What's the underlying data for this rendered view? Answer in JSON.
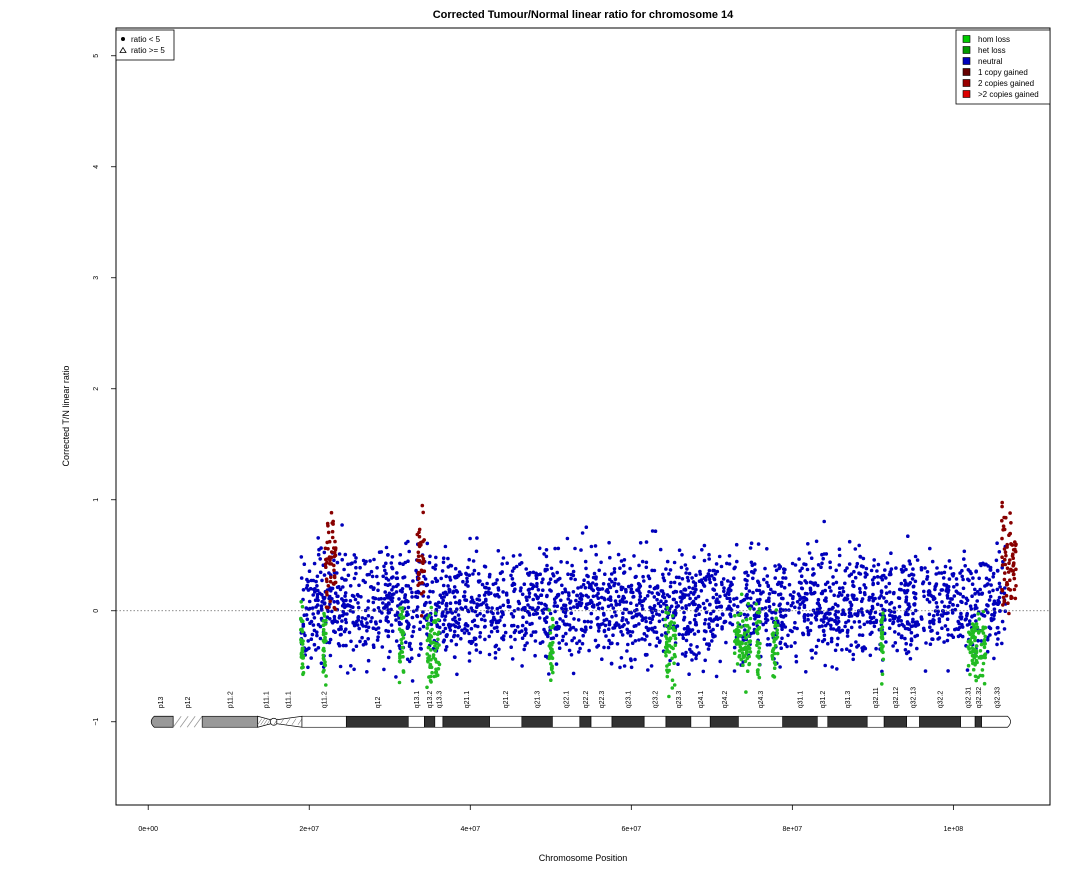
{
  "chart_data": {
    "type": "scatter",
    "title": "Corrected Tumour/Normal linear ratio for chromosome  14",
    "xlabel": "Chromosome Position",
    "ylabel": "Corrected T/N linear ratio",
    "xlim": [
      -4000000,
      112000000
    ],
    "ylim": [
      -1.75,
      5.25
    ],
    "x_ticks": [
      {
        "value": 0,
        "label": "0e+00"
      },
      {
        "value": 20000000,
        "label": "2e+07"
      },
      {
        "value": 40000000,
        "label": "4e+07"
      },
      {
        "value": 60000000,
        "label": "6e+07"
      },
      {
        "value": 80000000,
        "label": "8e+07"
      },
      {
        "value": 100000000,
        "label": "1e+08"
      }
    ],
    "y_ticks": [
      {
        "value": -1,
        "label": "−1"
      },
      {
        "value": 0,
        "label": "0"
      },
      {
        "value": 1,
        "label": "1"
      },
      {
        "value": 2,
        "label": "2"
      },
      {
        "value": 3,
        "label": "3"
      },
      {
        "value": 4,
        "label": "4"
      },
      {
        "value": 5,
        "label": "5"
      }
    ],
    "reference_line": 0,
    "shape_legend": {
      "placement": "top-left",
      "items": [
        {
          "label": "ratio < 5",
          "shape": "filled-circle"
        },
        {
          "label": "ratio >= 5",
          "shape": "open-triangle"
        }
      ]
    },
    "color_legend": {
      "placement": "top-right",
      "items": [
        {
          "label": "hom loss",
          "color": "#00cc00"
        },
        {
          "label": "het loss",
          "color": "#009900"
        },
        {
          "label": "neutral",
          "color": "#0000bb"
        },
        {
          "label": "1 copy gained",
          "color": "#660000"
        },
        {
          "label": "2 copies gained",
          "color": "#990000"
        },
        {
          "label": ">2 copies gained",
          "color": "#dd0000"
        }
      ]
    },
    "series": [
      {
        "name": "neutral",
        "color": "#0000bb",
        "x_range": [
          19000000,
          106500000
        ],
        "baseline": 0.05,
        "spread": 0.45
      },
      {
        "name": "het loss",
        "color": "#22bb22",
        "x_ranges": [
          [
            18900000,
            19300000
          ],
          [
            21700000,
            22100000
          ],
          [
            31200000,
            31800000
          ],
          [
            34600000,
            36200000
          ],
          [
            49800000,
            50300000
          ],
          [
            64200000,
            65500000
          ],
          [
            72800000,
            74800000
          ],
          [
            75500000,
            76000000
          ],
          [
            77500000,
            78200000
          ],
          [
            91000000,
            91300000
          ],
          [
            101800000,
            104000000
          ]
        ],
        "baseline": -0.3,
        "spread": 0.3
      },
      {
        "name": "1 copy gained",
        "color": "#880000",
        "x_ranges": [
          [
            22000000,
            23300000
          ],
          [
            33400000,
            34300000
          ],
          [
            106000000,
            107800000
          ]
        ],
        "baseline": 0.45,
        "spread": 0.45
      }
    ],
    "chromosome_ideogram": {
      "y": -1,
      "bands": [
        {
          "name": "p13",
          "start": 0,
          "end": 3100000,
          "stain": "gvar"
        },
        {
          "name": "p12",
          "start": 3100000,
          "end": 6700000,
          "stain": "stalk"
        },
        {
          "name": "p11.2",
          "start": 6700000,
          "end": 13600000,
          "stain": "gpos50"
        },
        {
          "name": "p11.1",
          "start": 13600000,
          "end": 15600000,
          "stain": "acen"
        },
        {
          "name": "q11.1",
          "start": 15600000,
          "end": 19100000,
          "stain": "acen"
        },
        {
          "name": "q11.2",
          "start": 19100000,
          "end": 24600000,
          "stain": "gneg"
        },
        {
          "name": "q12",
          "start": 24600000,
          "end": 32300000,
          "stain": "gpos100"
        },
        {
          "name": "q13.1",
          "start": 32300000,
          "end": 34300000,
          "stain": "gneg"
        },
        {
          "name": "q13.2",
          "start": 34300000,
          "end": 35600000,
          "stain": "gpos100"
        },
        {
          "name": "q13.3",
          "start": 35600000,
          "end": 36600000,
          "stain": "gneg"
        },
        {
          "name": "q21.1",
          "start": 36600000,
          "end": 42400000,
          "stain": "gpos100"
        },
        {
          "name": "q21.2",
          "start": 42400000,
          "end": 46400000,
          "stain": "gneg"
        },
        {
          "name": "q21.3",
          "start": 46400000,
          "end": 50200000,
          "stain": "gpos100"
        },
        {
          "name": "q22.1",
          "start": 50200000,
          "end": 53600000,
          "stain": "gneg"
        },
        {
          "name": "q22.2",
          "start": 53600000,
          "end": 55000000,
          "stain": "gpos100"
        },
        {
          "name": "q22.3",
          "start": 55000000,
          "end": 57600000,
          "stain": "gneg"
        },
        {
          "name": "q23.1",
          "start": 57600000,
          "end": 61600000,
          "stain": "gpos100"
        },
        {
          "name": "q23.2",
          "start": 61600000,
          "end": 64300000,
          "stain": "gneg"
        },
        {
          "name": "q23.3",
          "start": 64300000,
          "end": 67400000,
          "stain": "gpos100"
        },
        {
          "name": "q24.1",
          "start": 67400000,
          "end": 69800000,
          "stain": "gneg"
        },
        {
          "name": "q24.2",
          "start": 69800000,
          "end": 73300000,
          "stain": "gpos100"
        },
        {
          "name": "q24.3",
          "start": 73300000,
          "end": 78800000,
          "stain": "gneg"
        },
        {
          "name": "q31.1",
          "start": 78800000,
          "end": 83100000,
          "stain": "gpos100"
        },
        {
          "name": "q31.2",
          "start": 83100000,
          "end": 84400000,
          "stain": "gneg"
        },
        {
          "name": "q31.3",
          "start": 84400000,
          "end": 89300000,
          "stain": "gpos100"
        },
        {
          "name": "q32.11",
          "start": 89300000,
          "end": 91400000,
          "stain": "gneg"
        },
        {
          "name": "q32.12",
          "start": 91400000,
          "end": 94200000,
          "stain": "gpos100"
        },
        {
          "name": "q32.13",
          "start": 94200000,
          "end": 95800000,
          "stain": "gneg"
        },
        {
          "name": "q32.2",
          "start": 95800000,
          "end": 100900000,
          "stain": "gpos100"
        },
        {
          "name": "q32.31",
          "start": 100900000,
          "end": 102700000,
          "stain": "gneg"
        },
        {
          "name": "q32.32",
          "start": 102700000,
          "end": 103500000,
          "stain": "gpos100"
        },
        {
          "name": "q32.33",
          "start": 103500000,
          "end": 107349540,
          "stain": "gneg"
        }
      ]
    }
  }
}
